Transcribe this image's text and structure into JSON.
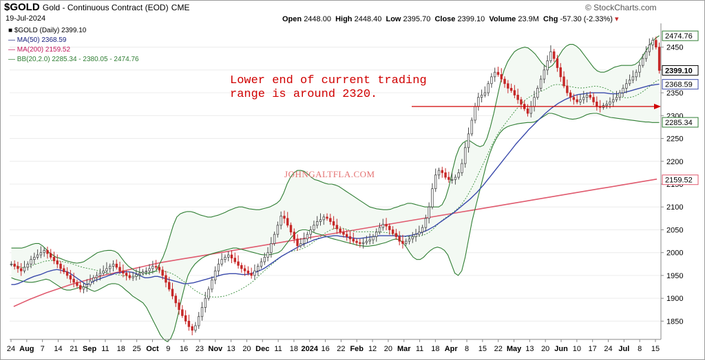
{
  "header": {
    "symbol": "$GOLD",
    "description": "Gold - Continuous Contract (EOD)",
    "exchange": "CME",
    "date": "19-Jul-2024",
    "open_label": "Open",
    "open": "2448.00",
    "high_label": "High",
    "high": "2448.40",
    "low_label": "Low",
    "low": "2395.70",
    "close_label": "Close",
    "close": "2399.10",
    "volume_label": "Volume",
    "volume": "23.9M",
    "chg_label": "Chg",
    "chg": "-57.30 (-2.33%)",
    "brand": "© StockCharts.com"
  },
  "legend": {
    "symbol": "■ $GOLD (Daily) 2399.10",
    "ma50": "— MA(50) 2368.59",
    "ma200": "— MA(200) 2159.52",
    "bb": "— BB(20,2.0) 2285.34 - 2380.05 - 2474.76"
  },
  "annotation": "Lower end of current trading\nrange is around 2320.",
  "watermark": "JOHNGALTFLA.COM",
  "colors": {
    "up": "#4a4a4a",
    "down": "#c62828",
    "ma50": "#3949ab",
    "ma200": "#e05a6e",
    "bb": "#2e7d32",
    "bbmid": "#388e3c",
    "annotation": "#d00000"
  },
  "chart_data": {
    "type": "candlestick",
    "ylim": [
      1810,
      2490
    ],
    "y_ticks": [
      1850,
      1900,
      1950,
      2000,
      2050,
      2100,
      2150,
      2200,
      2250,
      2300,
      2350,
      2400,
      2450
    ],
    "x_ticks": [
      "24",
      "Aug",
      "7",
      "14",
      "21",
      "Sep",
      "11",
      "18",
      "25",
      "Oct",
      "9",
      "16",
      "23",
      "Nov",
      "13",
      "20",
      "Dec",
      "11",
      "18",
      "2024",
      "16",
      "22",
      "Feb",
      "12",
      "20",
      "Mar",
      "11",
      "18",
      "Apr",
      "8",
      "15",
      "22",
      "May",
      "13",
      "20",
      "Jun",
      "10",
      "17",
      "24",
      "Jul",
      "8",
      "15"
    ],
    "x_ticks_bold": [
      "Aug",
      "Sep",
      "Oct",
      "Nov",
      "Dec",
      "2024",
      "Feb",
      "Mar",
      "Apr",
      "May",
      "Jun",
      "Jul"
    ],
    "last_values": {
      "bb_upper": "2474.76",
      "close": "2399.10",
      "ma50": "2368.59",
      "bb_lower": "2285.34",
      "ma200": "2159.52"
    },
    "close_series": [
      1975,
      1970,
      1965,
      1960,
      1968,
      1975,
      1985,
      1990,
      1995,
      2000,
      2005,
      1998,
      1990,
      1982,
      1975,
      1965,
      1958,
      1950,
      1942,
      1935,
      1928,
      1920,
      1925,
      1930,
      1938,
      1945,
      1950,
      1955,
      1960,
      1965,
      1970,
      1975,
      1968,
      1960,
      1955,
      1950,
      1945,
      1948,
      1952,
      1955,
      1958,
      1960,
      1965,
      1970,
      1968,
      1962,
      1950,
      1935,
      1920,
      1905,
      1890,
      1875,
      1862,
      1850,
      1838,
      1830,
      1840,
      1860,
      1880,
      1900,
      1920,
      1940,
      1960,
      1975,
      1985,
      1990,
      1995,
      1988,
      1980,
      1972,
      1965,
      1960,
      1955,
      1950,
      1960,
      1970,
      1980,
      1990,
      2000,
      2020,
      2040,
      2060,
      2080,
      2075,
      2060,
      2045,
      2030,
      2015,
      2020,
      2030,
      2040,
      2050,
      2060,
      2068,
      2072,
      2078,
      2075,
      2068,
      2060,
      2052,
      2045,
      2040,
      2035,
      2030,
      2025,
      2022,
      2020,
      2022,
      2025,
      2028,
      2035,
      2045,
      2055,
      2062,
      2058,
      2050,
      2042,
      2035,
      2025,
      2020,
      2025,
      2030,
      2035,
      2040,
      2045,
      2055,
      2075,
      2100,
      2140,
      2170,
      2180,
      2175,
      2165,
      2160,
      2160,
      2165,
      2175,
      2195,
      2230,
      2260,
      2290,
      2320,
      2340,
      2345,
      2350,
      2370,
      2385,
      2395,
      2390,
      2380,
      2370,
      2360,
      2355,
      2345,
      2335,
      2325,
      2315,
      2305,
      2320,
      2340,
      2360,
      2380,
      2400,
      2420,
      2440,
      2425,
      2405,
      2385,
      2365,
      2350,
      2340,
      2335,
      2330,
      2335,
      2340,
      2345,
      2340,
      2330,
      2320,
      2318,
      2322,
      2325,
      2330,
      2335,
      2340,
      2350,
      2360,
      2370,
      2378,
      2385,
      2395,
      2410,
      2425,
      2440,
      2455,
      2465,
      2450,
      2399
    ],
    "ma50_series": [
      1930,
      1930,
      1932,
      1935,
      1938,
      1942,
      1945,
      1948,
      1950,
      1952,
      1955,
      1958,
      1960,
      1962,
      1963,
      1962,
      1960,
      1958,
      1955,
      1950,
      1945,
      1940,
      1935,
      1930,
      1932,
      1936,
      1940,
      1942,
      1945,
      1947,
      1950,
      1952,
      1955,
      1956,
      1957,
      1958,
      1958,
      1957,
      1955,
      1952,
      1948,
      1945,
      1945,
      1946,
      1948,
      1948,
      1946,
      1944,
      1942,
      1940,
      1938,
      1936,
      1934,
      1932,
      1932,
      1933,
      1934,
      1936,
      1938,
      1940,
      1942,
      1944,
      1946,
      1948,
      1950,
      1952,
      1953,
      1954,
      1954,
      1954,
      1953,
      1952,
      1952,
      1953,
      1955,
      1957,
      1960,
      1963,
      1967,
      1972,
      1977,
      1982,
      1987,
      1992,
      1996,
      2000,
      2004,
      2008,
      2012,
      2016,
      2019,
      2022,
      2025,
      2028,
      2030,
      2032,
      2034,
      2035,
      2036,
      2037,
      2037,
      2036,
      2035,
      2034,
      2033,
      2032,
      2031,
      2031,
      2032,
      2033,
      2034,
      2035,
      2036,
      2037,
      2037,
      2037,
      2037,
      2037,
      2037,
      2036,
      2036,
      2036,
      2037,
      2038,
      2040,
      2042,
      2044,
      2047,
      2050,
      2054,
      2058,
      2063,
      2068,
      2073,
      2078,
      2083,
      2088,
      2094,
      2100,
      2106,
      2112,
      2118,
      2125,
      2132,
      2140,
      2148,
      2157,
      2166,
      2175,
      2184,
      2193,
      2202,
      2211,
      2220,
      2229,
      2238,
      2246,
      2254,
      2262,
      2270,
      2277,
      2284,
      2291,
      2298,
      2305,
      2311,
      2317,
      2322,
      2327,
      2331,
      2335,
      2338,
      2341,
      2344,
      2346,
      2347,
      2348,
      2349,
      2350,
      2350,
      2350,
      2350,
      2350,
      2349,
      2348,
      2348,
      2348,
      2349,
      2350,
      2352,
      2354,
      2356,
      2358,
      2360,
      2362,
      2364,
      2366,
      2367,
      2368,
      2369
    ],
    "ma200_series": [
      1882,
      1890,
      1898,
      1905,
      1912,
      1918,
      1924,
      1930,
      1935,
      1940,
      1945,
      1950,
      1954,
      1958,
      1962,
      1966,
      1970,
      1974,
      1978,
      1981,
      1984,
      1987,
      1990,
      1993,
      1996,
      1999,
      2002,
      2005,
      2008,
      2011,
      2014,
      2017,
      2020,
      2023,
      2026,
      2029,
      2032,
      2035,
      2038,
      2041,
      2044,
      2047,
      2050,
      2053,
      2056,
      2059,
      2062,
      2065,
      2068,
      2071,
      2074,
      2077,
      2080,
      2083,
      2086,
      2089,
      2092,
      2095,
      2098,
      2101,
      2104,
      2107,
      2110,
      2113,
      2116,
      2119,
      2122,
      2125,
      2128,
      2131,
      2134,
      2137,
      2140,
      2143,
      2146,
      2149,
      2152,
      2155,
      2158,
      2161
    ],
    "bb_upper_series": [
      2010,
      2010,
      2010,
      2010,
      2012,
      2015,
      2018,
      2020,
      2020,
      2015,
      2008,
      2000,
      1995,
      1990,
      1988,
      1985,
      1982,
      1980,
      1978,
      1977,
      1978,
      1980,
      1985,
      1990,
      1995,
      2000,
      2002,
      2004,
      2005,
      2005,
      2003,
      1998,
      1988,
      1978,
      1970,
      1965,
      1960,
      1958,
      1956,
      1955,
      1956,
      1958,
      1960,
      1975,
      1990,
      2010,
      2035,
      2060,
      2078,
      2085,
      2088,
      2090,
      2090,
      2088,
      2085,
      2082,
      2080,
      2078,
      2078,
      2080,
      2082,
      2085,
      2088,
      2092,
      2095,
      2098,
      2100,
      2100,
      2098,
      2096,
      2095,
      2094,
      2094,
      2096,
      2098,
      2100,
      2104,
      2108,
      2115,
      2130,
      2150,
      2165,
      2175,
      2180,
      2180,
      2178,
      2172,
      2165,
      2160,
      2158,
      2155,
      2152,
      2150,
      2150,
      2148,
      2145,
      2140,
      2135,
      2130,
      2125,
      2120,
      2115,
      2110,
      2105,
      2100,
      2098,
      2096,
      2095,
      2094,
      2094,
      2095,
      2098,
      2100,
      2103,
      2105,
      2108,
      2108,
      2106,
      2104,
      2102,
      2100,
      2100,
      2100,
      2100,
      2100,
      2105,
      2120,
      2145,
      2180,
      2210,
      2230,
      2240,
      2245,
      2245,
      2240,
      2235,
      2232,
      2235,
      2250,
      2275,
      2305,
      2340,
      2375,
      2400,
      2418,
      2430,
      2440,
      2445,
      2448,
      2450,
      2448,
      2442,
      2435,
      2425,
      2415,
      2408,
      2405,
      2410,
      2420,
      2432,
      2444,
      2452,
      2456,
      2456,
      2452,
      2445,
      2435,
      2425,
      2415,
      2405,
      2398,
      2395,
      2395,
      2398,
      2402,
      2406,
      2408,
      2410,
      2410,
      2410,
      2410,
      2412,
      2418,
      2428,
      2440,
      2452,
      2462,
      2470,
      2475
    ],
    "bb_lower_series": [
      1945,
      1942,
      1940,
      1938,
      1936,
      1935,
      1935,
      1936,
      1938,
      1940,
      1942,
      1940,
      1935,
      1930,
      1925,
      1920,
      1918,
      1918,
      1920,
      1922,
      1925,
      1925,
      1922,
      1918,
      1915,
      1918,
      1922,
      1926,
      1930,
      1932,
      1932,
      1930,
      1925,
      1918,
      1912,
      1905,
      1900,
      1895,
      1890,
      1880,
      1865,
      1850,
      1835,
      1820,
      1810,
      1805,
      1812,
      1830,
      1860,
      1895,
      1925,
      1950,
      1965,
      1975,
      1982,
      1988,
      1992,
      1995,
      1998,
      2000,
      2002,
      2004,
      2006,
      2008,
      2010,
      2010,
      2008,
      2006,
      2004,
      2002,
      2000,
      1998,
      1996,
      1995,
      1995,
      1996,
      1998,
      2000,
      2005,
      2015,
      2025,
      2035,
      2042,
      2048,
      2050,
      2050,
      2048,
      2045,
      2042,
      2040,
      2038,
      2035,
      2032,
      2030,
      2028,
      2026,
      2024,
      2022,
      2020,
      2018,
      2016,
      2015,
      2014,
      2014,
      2015,
      2016,
      2018,
      2020,
      2022,
      2025,
      2028,
      2030,
      2028,
      2022,
      2012,
      2000,
      1990,
      1985,
      1985,
      1990,
      1998,
      2005,
      2010,
      2012,
      2010,
      2005,
      1995,
      1975,
      1955,
      1950,
      1960,
      1990,
      2030,
      2070,
      2100,
      2130,
      2160,
      2190,
      2215,
      2235,
      2250,
      2262,
      2270,
      2275,
      2278,
      2280,
      2282,
      2283,
      2284,
      2285,
      2285,
      2286,
      2290,
      2295,
      2300,
      2305,
      2305,
      2303,
      2300,
      2297,
      2295,
      2293,
      2292,
      2293,
      2295,
      2298,
      2302,
      2304,
      2305,
      2305,
      2303,
      2300,
      2298,
      2296,
      2295,
      2294,
      2293,
      2292,
      2291,
      2290,
      2289,
      2288,
      2287,
      2286,
      2286,
      2285,
      2285,
      2285
    ],
    "annotation_line_level": 2320
  }
}
